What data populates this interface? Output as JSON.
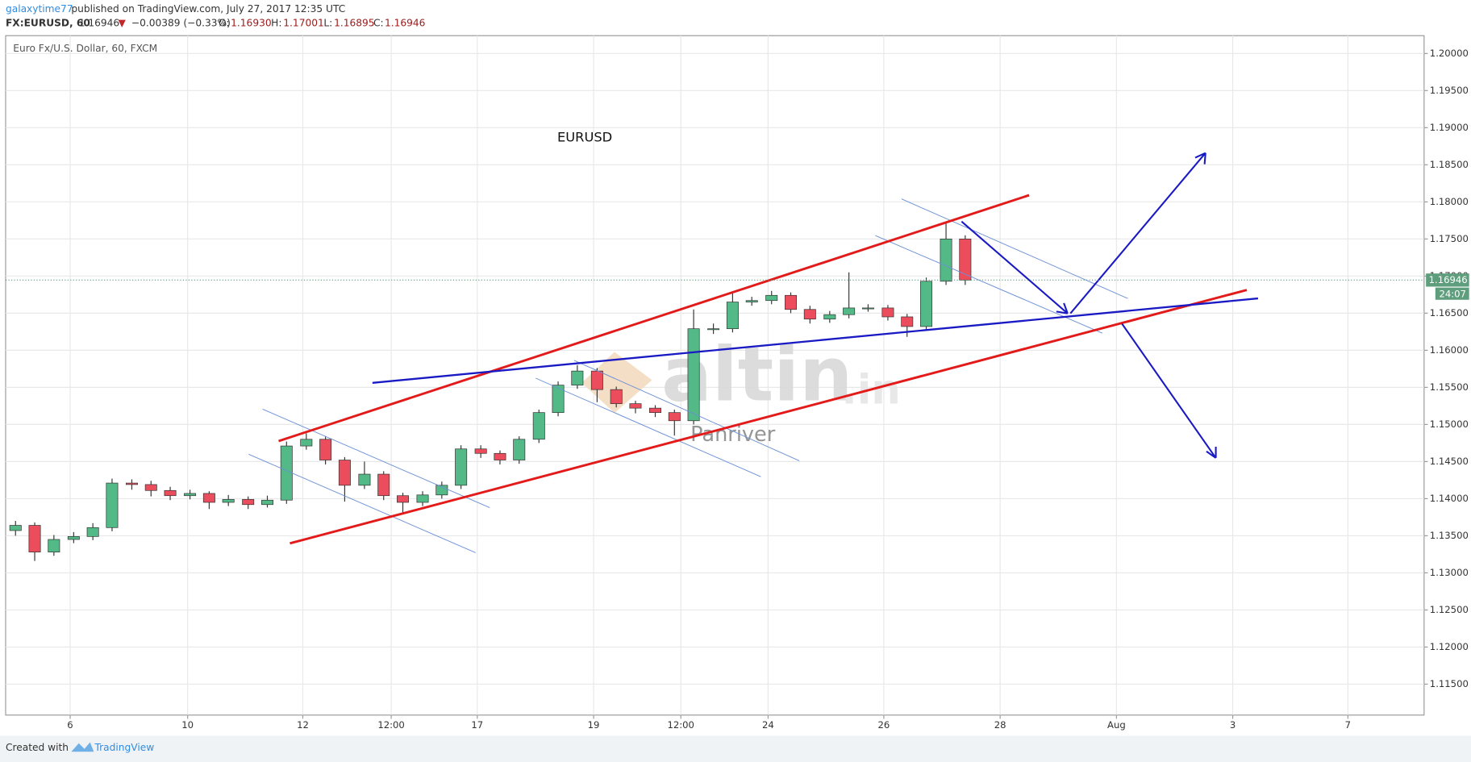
{
  "header": {
    "user": "galaxytime77",
    "published": "published on TradingView.com, July 27, 2017 12:35 UTC",
    "symbol": "FX:EURUSD, 60",
    "price": "1.16946",
    "arrow": "▼",
    "change": "−0.00389 (−0.33%)",
    "o_label": "O:",
    "open": "1.16930",
    "h_label": "H:",
    "high": "1.17001",
    "l_label": "L:",
    "low": "1.16895",
    "c_label": "C:",
    "close": "1.16946"
  },
  "chart_data": {
    "type": "candlestick",
    "legend": "Euro Fx/U.S. Dollar, 60, FXCM",
    "annotation": "EURUSD",
    "watermark": "altin",
    "watermark_suffix": ".in",
    "watermark_sub": "Panriver",
    "up_color": "#53b987",
    "down_color": "#eb4d5c",
    "grid": true,
    "x": [
      0.17,
      0.5,
      0.83,
      1.17,
      1.5,
      1.83,
      2.17,
      2.5,
      2.83,
      3.17,
      3.5,
      3.83,
      4.17,
      4.5,
      4.83,
      5.17,
      5.5,
      5.83,
      6.17,
      6.5,
      6.83,
      7.17,
      7.5,
      7.83,
      8.17,
      8.5,
      8.83,
      9.17,
      9.5,
      9.83,
      10.17,
      10.5,
      10.83,
      11.17,
      11.5,
      11.83,
      12.17,
      12.5,
      12.83,
      13.17,
      13.5,
      13.83,
      14.17,
      14.5,
      14.83,
      15.17,
      15.5,
      15.83,
      16.17,
      16.5
    ],
    "open": [
      1.1357,
      1.1364,
      1.1328,
      1.1345,
      1.1349,
      1.1361,
      1.1421,
      1.1419,
      1.1411,
      1.1404,
      1.1407,
      1.1395,
      1.1399,
      1.1392,
      1.1398,
      1.1471,
      1.148,
      1.1452,
      1.1418,
      1.1433,
      1.1404,
      1.1395,
      1.1405,
      1.1418,
      1.1467,
      1.1461,
      1.1452,
      1.148,
      1.1516,
      1.1553,
      1.1572,
      1.1547,
      1.1528,
      1.1522,
      1.1516,
      1.1505,
      1.1629,
      1.1629,
      1.1665,
      1.1667,
      1.1674,
      1.1655,
      1.1642,
      1.1648,
      1.1657,
      1.1657,
      1.1645,
      1.1632,
      1.1693,
      1.175
    ],
    "high": [
      1.137,
      1.1368,
      1.1351,
      1.1355,
      1.1367,
      1.1427,
      1.1426,
      1.1424,
      1.1416,
      1.1412,
      1.141,
      1.1405,
      1.1403,
      1.1404,
      1.1477,
      1.1488,
      1.1484,
      1.1456,
      1.145,
      1.1437,
      1.1408,
      1.141,
      1.1423,
      1.1472,
      1.1472,
      1.1465,
      1.1484,
      1.152,
      1.1558,
      1.158,
      1.1576,
      1.1551,
      1.1532,
      1.1526,
      1.152,
      1.1655,
      1.1636,
      1.1677,
      1.1672,
      1.168,
      1.1678,
      1.166,
      1.1653,
      1.1705,
      1.1662,
      1.1661,
      1.1649,
      1.1698,
      1.1773,
      1.1755
    ],
    "low": [
      1.135,
      1.1316,
      1.1323,
      1.134,
      1.1344,
      1.1356,
      1.1412,
      1.1403,
      1.1398,
      1.1399,
      1.1386,
      1.139,
      1.1386,
      1.1388,
      1.1393,
      1.1466,
      1.1446,
      1.1396,
      1.1413,
      1.1398,
      1.138,
      1.139,
      1.14,
      1.1413,
      1.1455,
      1.1446,
      1.1447,
      1.1475,
      1.1511,
      1.1548,
      1.153,
      1.1523,
      1.1515,
      1.151,
      1.1485,
      1.15,
      1.1622,
      1.1624,
      1.166,
      1.1662,
      1.165,
      1.1636,
      1.1637,
      1.1643,
      1.1652,
      1.164,
      1.1618,
      1.1627,
      1.1688,
      1.1688
    ],
    "close": [
      1.1364,
      1.1328,
      1.1345,
      1.1349,
      1.1361,
      1.1421,
      1.1419,
      1.1411,
      1.1404,
      1.1407,
      1.1395,
      1.1399,
      1.1392,
      1.1398,
      1.1471,
      1.148,
      1.1452,
      1.1418,
      1.1433,
      1.1404,
      1.1395,
      1.1405,
      1.1418,
      1.1467,
      1.1461,
      1.1452,
      1.148,
      1.1516,
      1.1553,
      1.1572,
      1.1547,
      1.1528,
      1.1522,
      1.1516,
      1.1505,
      1.1629,
      1.1629,
      1.1665,
      1.1667,
      1.1674,
      1.1655,
      1.1642,
      1.1648,
      1.1657,
      1.1657,
      1.1645,
      1.1632,
      1.1693,
      1.175,
      1.16946
    ],
    "last_price": {
      "value": 1.16946,
      "label": "1.16946"
    },
    "countdown": "24:07",
    "xlim": [
      0,
      24.39
    ],
    "xticks": [
      {
        "value": 1.11,
        "label": "6"
      },
      {
        "value": 3.13,
        "label": "10"
      },
      {
        "value": 5.11,
        "label": "12"
      },
      {
        "value": 6.63,
        "label": "12:00"
      },
      {
        "value": 8.11,
        "label": "17"
      },
      {
        "value": 10.11,
        "label": "19"
      },
      {
        "value": 11.61,
        "label": "12:00"
      },
      {
        "value": 13.11,
        "label": "24"
      },
      {
        "value": 15.1,
        "label": "26"
      },
      {
        "value": 17.1,
        "label": "28"
      },
      {
        "value": 19.1,
        "label": "Aug"
      },
      {
        "value": 21.1,
        "label": "3"
      },
      {
        "value": 23.08,
        "label": "7"
      }
    ],
    "ylim": [
      1.11083,
      1.2024
    ],
    "yticks": [
      {
        "value": 1.115,
        "label": "1.11500"
      },
      {
        "value": 1.12,
        "label": "1.12000"
      },
      {
        "value": 1.125,
        "label": "1.12500"
      },
      {
        "value": 1.13,
        "label": "1.13000"
      },
      {
        "value": 1.135,
        "label": "1.13500"
      },
      {
        "value": 1.14,
        "label": "1.14000"
      },
      {
        "value": 1.145,
        "label": "1.14500"
      },
      {
        "value": 1.15,
        "label": "1.15000"
      },
      {
        "value": 1.155,
        "label": "1.15500"
      },
      {
        "value": 1.16,
        "label": "1.16000"
      },
      {
        "value": 1.165,
        "label": "1.16500"
      },
      {
        "value": 1.17,
        "label": "1.17000"
      },
      {
        "value": 1.175,
        "label": "1.17500"
      },
      {
        "value": 1.18,
        "label": "1.18000"
      },
      {
        "value": 1.185,
        "label": "1.18500"
      },
      {
        "value": 1.19,
        "label": "1.19000"
      },
      {
        "value": 1.195,
        "label": "1.19500"
      },
      {
        "value": 1.2,
        "label": "1.20000"
      }
    ]
  },
  "footer": {
    "created": "Created with",
    "brand": "TradingView"
  }
}
